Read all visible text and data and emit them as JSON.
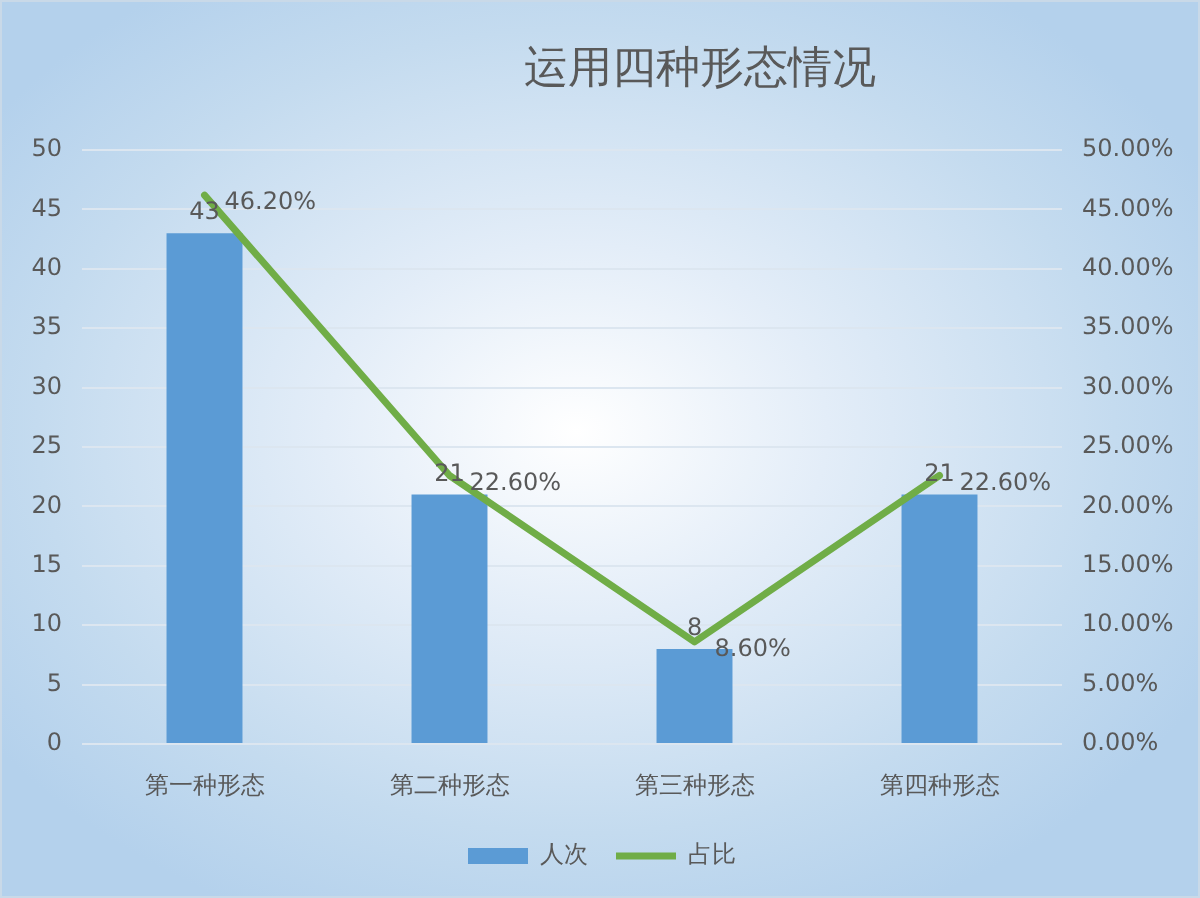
{
  "chart_data": {
    "type": "bar",
    "title": "运用四种形态情况",
    "categories": [
      "第一种形态",
      "第二种形态",
      "第三种形态",
      "第四种形态"
    ],
    "series": [
      {
        "name": "人次",
        "color": "#5b9bd5",
        "values": [
          43,
          21,
          8,
          21
        ],
        "value_labels": [
          "43",
          "21",
          "8",
          "21"
        ]
      },
      {
        "name": "占比",
        "type": "line",
        "axis": "y2",
        "color": "#70ad47",
        "values": [
          46.2,
          22.6,
          8.6,
          22.6
        ],
        "value_labels": [
          "46.20%",
          "22.60%",
          "8.60%",
          "22.60%"
        ]
      }
    ],
    "ylim": [
      0,
      50
    ],
    "yticks": [
      0,
      5,
      10,
      15,
      20,
      25,
      30,
      35,
      40,
      45,
      50
    ],
    "y2lim": [
      0,
      50
    ],
    "y2ticks": [
      {
        "value": 0,
        "label": "0.00%"
      },
      {
        "value": 5,
        "label": "5.00%"
      },
      {
        "value": 10,
        "label": "10.00%"
      },
      {
        "value": 15,
        "label": "15.00%"
      },
      {
        "value": 20,
        "label": "20.00%"
      },
      {
        "value": 25,
        "label": "25.00%"
      },
      {
        "value": 30,
        "label": "30.00%"
      },
      {
        "value": 35,
        "label": "35.00%"
      },
      {
        "value": 40,
        "label": "40.00%"
      },
      {
        "value": 45,
        "label": "45.00%"
      },
      {
        "value": 50,
        "label": "50.00%"
      }
    ],
    "grid": "y",
    "legend": "bottom",
    "marker": "none"
  }
}
